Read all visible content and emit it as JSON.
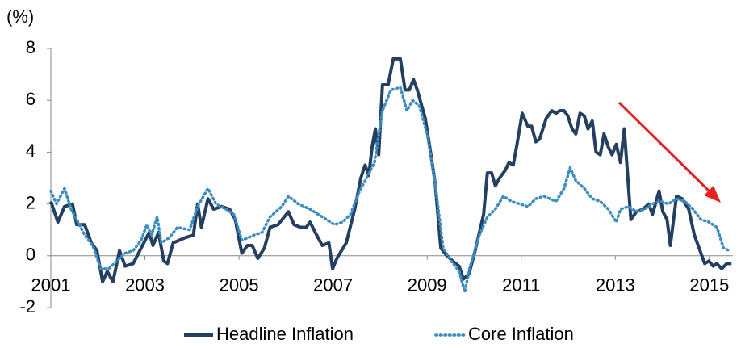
{
  "chart_data": {
    "type": "line",
    "y_label": "(%)",
    "xlim": [
      2001,
      2015.5
    ],
    "xticks": [
      2001,
      2003,
      2005,
      2007,
      2009,
      2011,
      2013,
      2015
    ],
    "ylim": [
      -2,
      8
    ],
    "yticks": [
      -2,
      0,
      2,
      4,
      6,
      8
    ],
    "grid": false,
    "legend": "bottom",
    "series": [
      {
        "name": "Headline Inflation",
        "color": "#243f60",
        "x": [
          2001,
          2001.15,
          2001.29,
          2001.46,
          2001.55,
          2001.72,
          2001.86,
          2001.98,
          2002.1,
          2002.2,
          2002.32,
          2002.46,
          2002.58,
          2002.75,
          2002.92,
          2003.09,
          2003.17,
          2003.29,
          2003.4,
          2003.48,
          2003.6,
          2003.86,
          2004.03,
          2004.12,
          2004.2,
          2004.34,
          2004.46,
          2004.63,
          2004.8,
          2004.92,
          2005.06,
          2005.18,
          2005.28,
          2005.4,
          2005.54,
          2005.66,
          2005.83,
          2006.05,
          2006.17,
          2006.31,
          2006.43,
          2006.51,
          2006.65,
          2006.77,
          2006.91,
          2006.99,
          2007.08,
          2007.28,
          2007.46,
          2007.59,
          2007.68,
          2007.76,
          2007.83,
          2007.9,
          2007.97,
          2008.05,
          2008.17,
          2008.28,
          2008.43,
          2008.53,
          2008.62,
          2008.71,
          2008.79,
          2008.96,
          2009.08,
          2009.17,
          2009.29,
          2009.42,
          2009.54,
          2009.68,
          2009.77,
          2009.89,
          2010.02,
          2010.2,
          2010.28,
          2010.37,
          2010.45,
          2010.54,
          2010.66,
          2010.74,
          2010.83,
          2010.91,
          2011.02,
          2011.14,
          2011.22,
          2011.31,
          2011.39,
          2011.53,
          2011.65,
          2011.74,
          2011.82,
          2011.91,
          2011.99,
          2012.08,
          2012.16,
          2012.25,
          2012.34,
          2012.42,
          2012.51,
          2012.59,
          2012.68,
          2012.76,
          2012.85,
          2012.93,
          2013.02,
          2013.11,
          2013.19,
          2013.33,
          2013.45,
          2013.59,
          2013.71,
          2013.79,
          2013.93,
          2014.01,
          2014.1,
          2014.17,
          2014.3,
          2014.42,
          2014.56,
          2014.68,
          2014.82,
          2014.9,
          2014.99,
          2015.08,
          2015.16,
          2015.26,
          2015.37,
          2015.47
        ],
        "values": [
          2.1,
          1.3,
          1.9,
          2.0,
          1.2,
          1.2,
          0.5,
          0.2,
          -1.0,
          -0.6,
          -1.0,
          0.2,
          -0.4,
          -0.3,
          0.3,
          0.9,
          0.4,
          0.9,
          -0.2,
          -0.3,
          0.5,
          0.7,
          0.8,
          2.0,
          1.1,
          2.2,
          1.8,
          1.9,
          1.8,
          1.4,
          0.1,
          0.4,
          0.4,
          -0.1,
          0.3,
          1.1,
          1.2,
          1.7,
          1.2,
          1.1,
          1.1,
          1.3,
          0.8,
          0.4,
          0.5,
          -0.5,
          -0.1,
          0.5,
          1.8,
          3.0,
          3.5,
          3.1,
          4.2,
          4.9,
          3.9,
          6.6,
          6.6,
          7.6,
          7.6,
          6.4,
          6.4,
          6.8,
          6.4,
          5.3,
          3.9,
          2.8,
          0.3,
          0.0,
          -0.2,
          -0.4,
          -0.9,
          -0.7,
          0.2,
          1.6,
          3.2,
          3.2,
          2.7,
          3.0,
          3.3,
          3.6,
          3.5,
          4.3,
          5.5,
          5.0,
          5.0,
          4.4,
          4.5,
          5.3,
          5.6,
          5.5,
          5.6,
          5.6,
          5.4,
          4.9,
          4.7,
          5.5,
          5.4,
          4.9,
          5.2,
          4.0,
          3.9,
          4.7,
          4.2,
          3.9,
          4.3,
          3.6,
          4.9,
          1.4,
          1.7,
          1.8,
          2.0,
          1.6,
          2.5,
          1.7,
          1.4,
          0.4,
          2.3,
          2.2,
          1.8,
          0.8,
          0.1,
          -0.3,
          -0.2,
          -0.4,
          -0.3,
          -0.5,
          -0.3,
          -0.3
        ]
      },
      {
        "name": "Core Inflation",
        "color": "#3c8dbf",
        "x": [
          2001,
          2001.12,
          2001.29,
          2001.43,
          2001.55,
          2001.72,
          2001.89,
          2002.06,
          2002.23,
          2002.4,
          2002.58,
          2002.75,
          2002.92,
          2003.04,
          2003.14,
          2003.26,
          2003.35,
          2003.52,
          2003.69,
          2003.95,
          2004.12,
          2004.34,
          2004.51,
          2004.72,
          2004.89,
          2005.06,
          2005.2,
          2005.32,
          2005.49,
          2005.66,
          2005.91,
          2006.05,
          2006.26,
          2006.51,
          2006.77,
          2007.03,
          2007.2,
          2007.37,
          2007.54,
          2007.71,
          2007.88,
          2008.05,
          2008.23,
          2008.43,
          2008.57,
          2008.69,
          2008.83,
          2009.0,
          2009.17,
          2009.34,
          2009.51,
          2009.68,
          2009.8,
          2009.9,
          2010.11,
          2010.28,
          2010.45,
          2010.62,
          2010.79,
          2010.97,
          2011.14,
          2011.31,
          2011.48,
          2011.74,
          2011.91,
          2012.04,
          2012.16,
          2012.34,
          2012.51,
          2012.68,
          2012.85,
          2013.02,
          2013.11,
          2013.28,
          2013.45,
          2013.62,
          2013.79,
          2013.96,
          2014.13,
          2014.3,
          2014.48,
          2014.65,
          2014.82,
          2014.99,
          2015.16,
          2015.3,
          2015.42
        ],
        "values": [
          2.5,
          2.0,
          2.6,
          1.8,
          1.4,
          0.8,
          0.4,
          -0.5,
          -0.5,
          -0.2,
          0.1,
          0.2,
          0.6,
          1.2,
          0.8,
          1.5,
          0.5,
          0.7,
          1.1,
          1.0,
          1.9,
          2.6,
          2.0,
          1.8,
          1.6,
          0.6,
          0.7,
          0.8,
          0.9,
          1.5,
          1.9,
          2.3,
          2.0,
          1.8,
          1.5,
          1.2,
          1.3,
          1.6,
          2.4,
          3.0,
          3.6,
          5.6,
          6.4,
          6.5,
          5.6,
          6.0,
          5.8,
          4.7,
          2.8,
          0.3,
          -0.2,
          -0.6,
          -1.4,
          -0.5,
          0.8,
          1.5,
          1.8,
          2.3,
          2.1,
          2.0,
          1.9,
          2.2,
          2.3,
          2.1,
          2.6,
          3.4,
          2.9,
          2.6,
          2.2,
          2.1,
          1.8,
          1.3,
          1.8,
          1.9,
          1.7,
          1.8,
          2.0,
          2.1,
          2.0,
          2.2,
          2.1,
          1.8,
          1.4,
          1.3,
          1.1,
          0.3,
          0.2
        ]
      }
    ]
  }
}
